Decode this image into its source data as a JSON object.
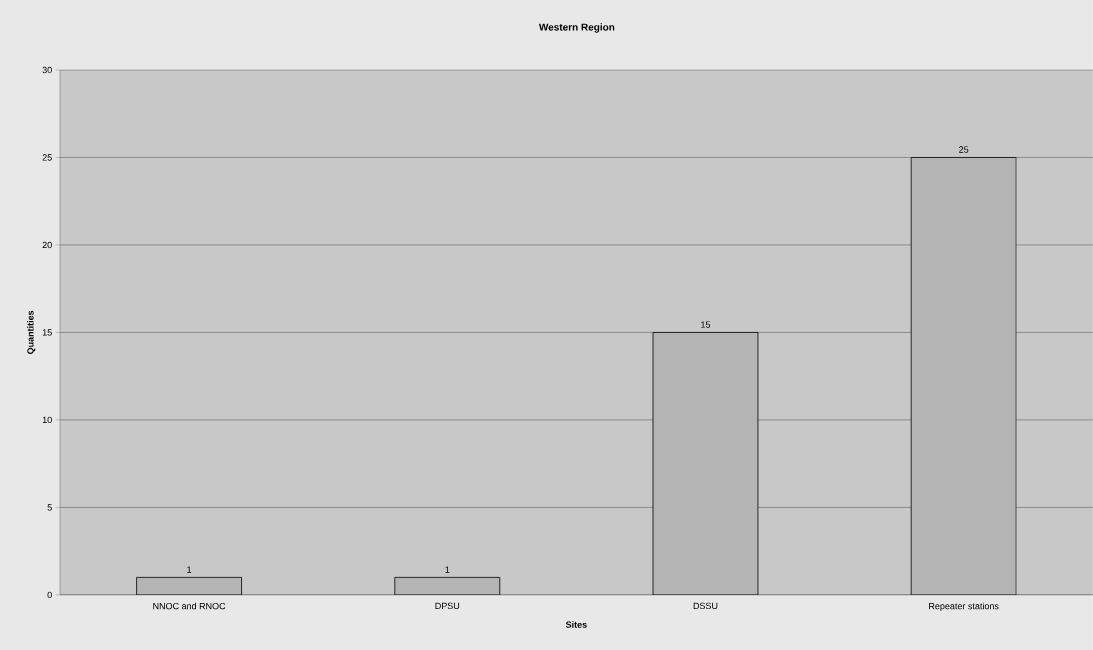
{
  "chart_data": {
    "type": "bar",
    "title": "Western Region",
    "xlabel": "Sites",
    "ylabel": "Quantities",
    "categories": [
      "NNOC and RNOC",
      "DPSU",
      "DSSU",
      "Repeater stations"
    ],
    "values": [
      1,
      1,
      15,
      25
    ],
    "color": "#b4b4b4",
    "ylim": [
      0,
      30
    ],
    "yticks": [
      0,
      5,
      10,
      15,
      20,
      25,
      30
    ],
    "grid": "y",
    "data_labels": true
  }
}
